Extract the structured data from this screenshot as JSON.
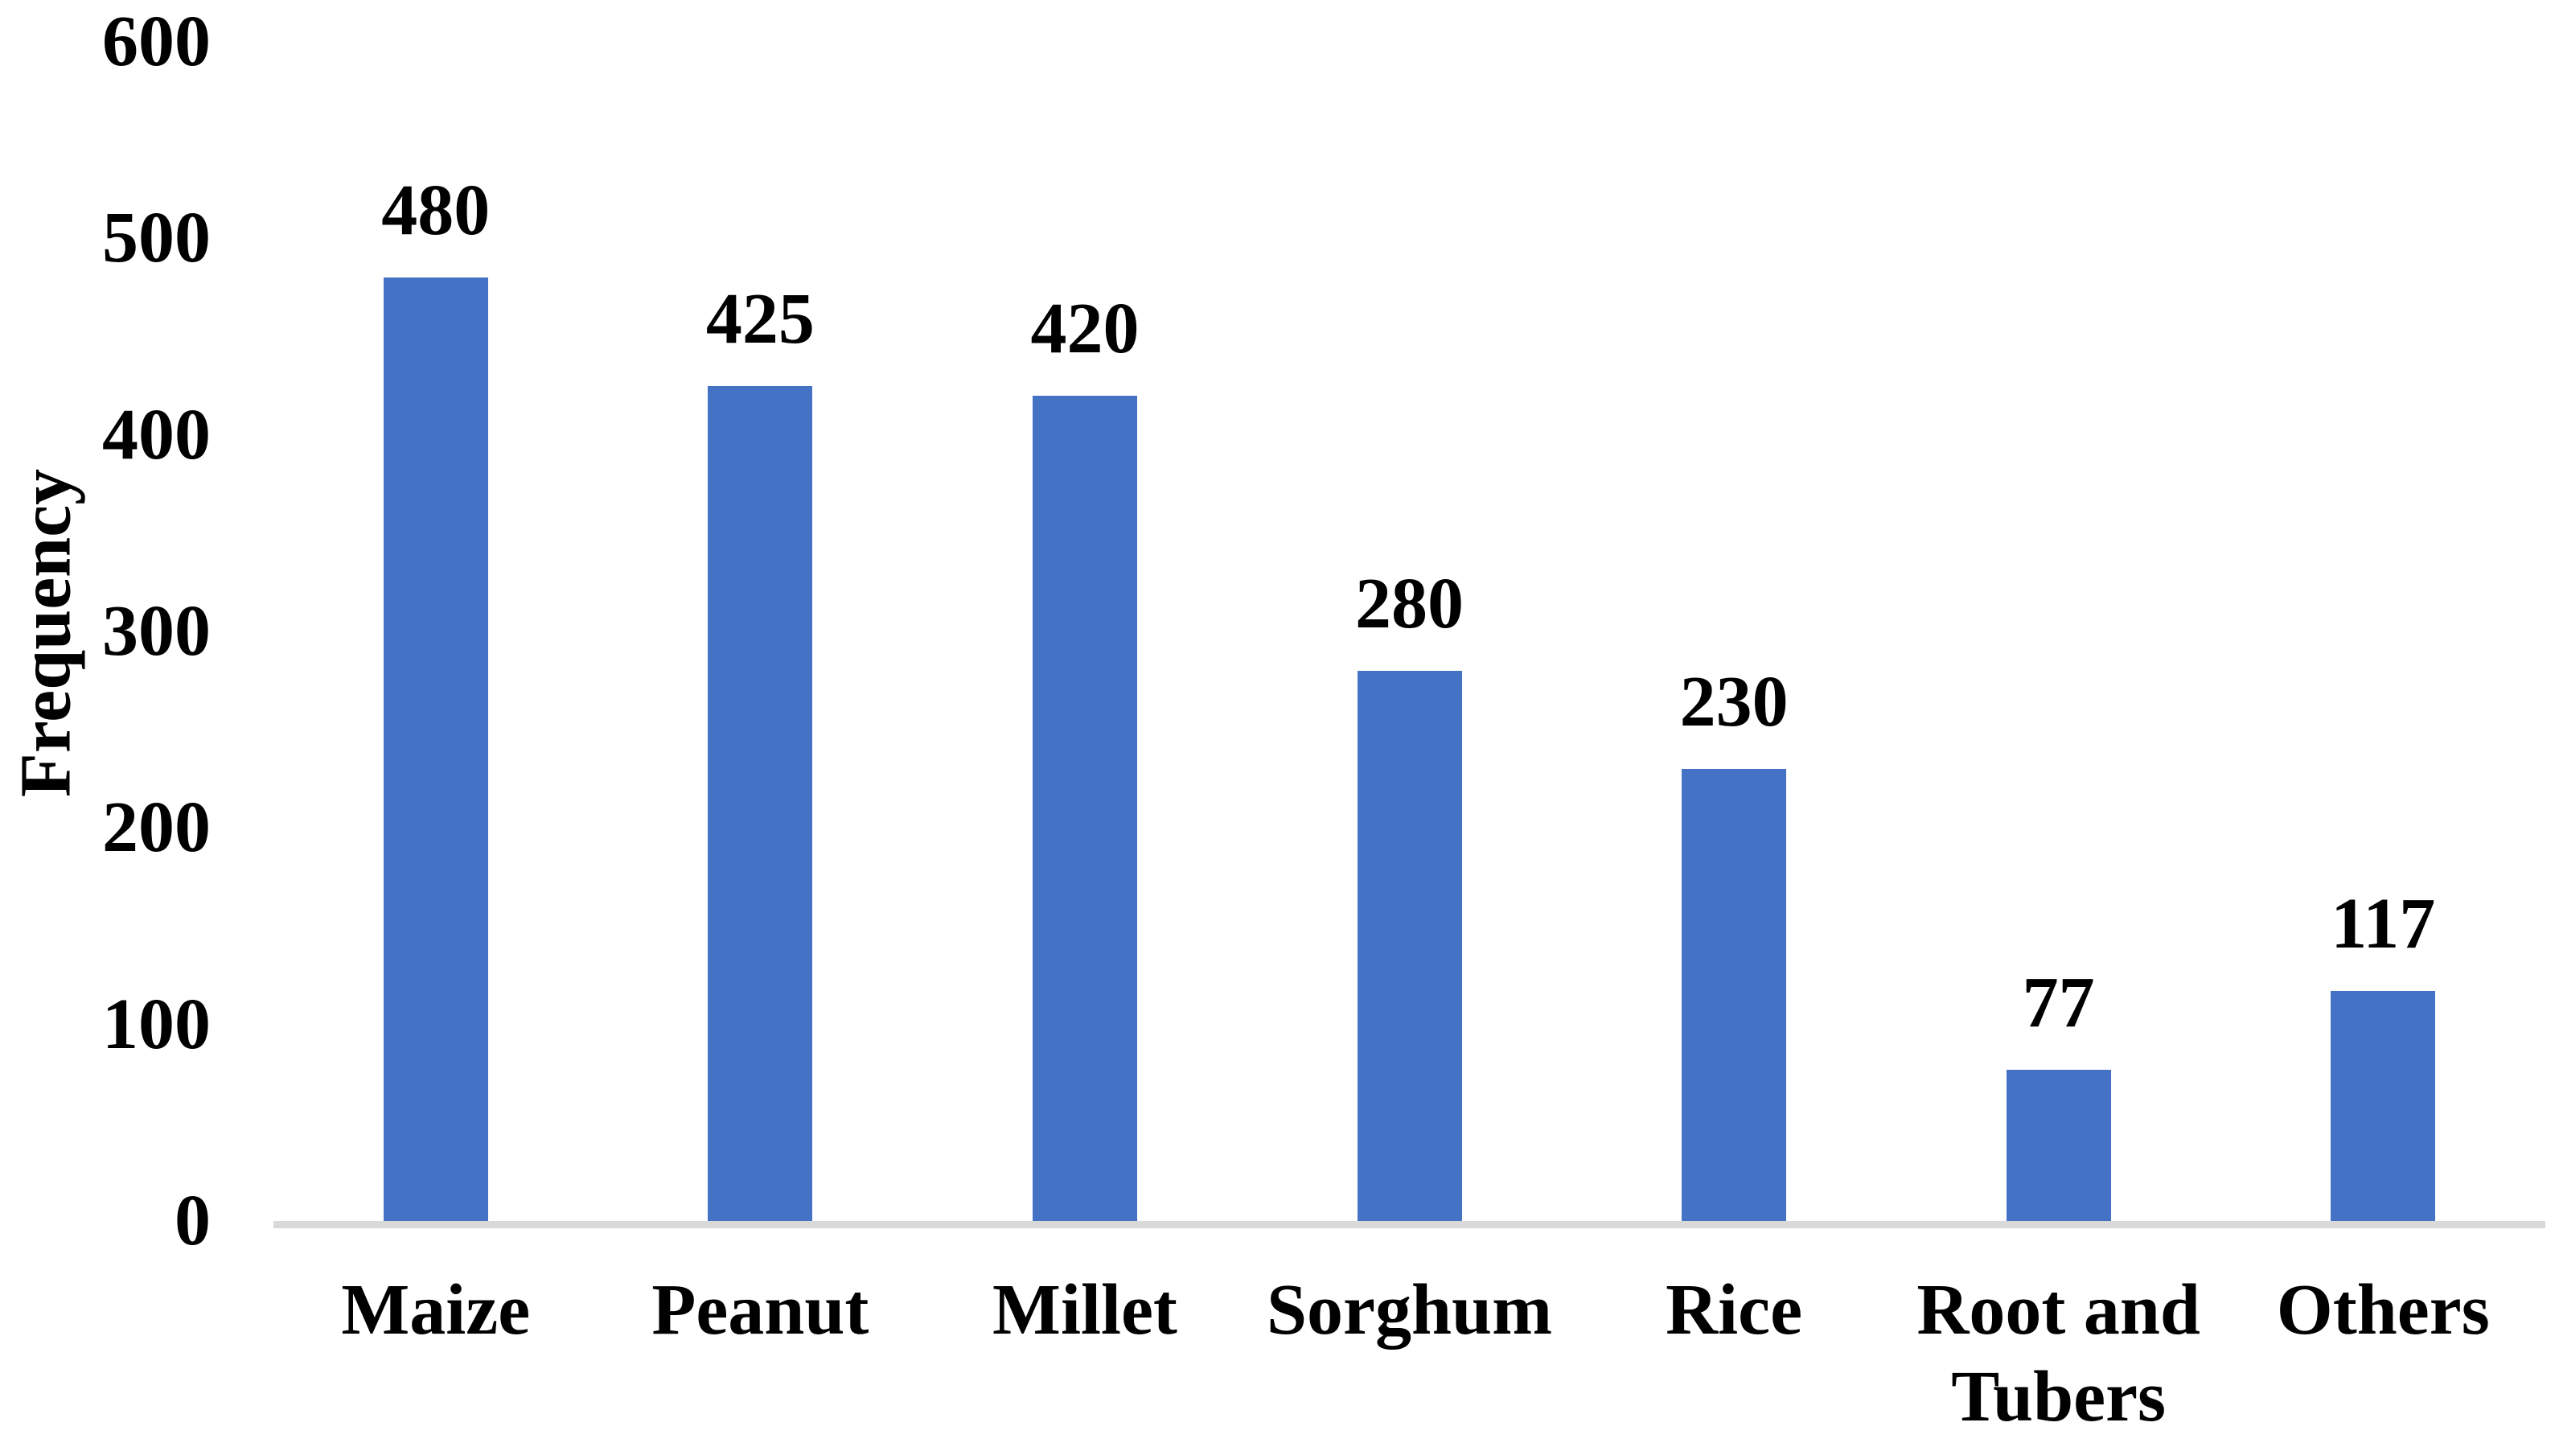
{
  "chart_data": {
    "type": "bar",
    "title": "",
    "xlabel": "",
    "ylabel": "Frequency",
    "categories": [
      "Maize",
      "Peanut",
      "Millet",
      "Sorghum",
      "Rice",
      "Root and Tubers",
      "Others"
    ],
    "values": [
      480,
      425,
      420,
      280,
      230,
      77,
      117
    ],
    "data_labels": [
      "480",
      "425",
      "420",
      "280",
      "230",
      "77",
      "117"
    ],
    "ylim": [
      0,
      600
    ],
    "yticks": [
      0,
      100,
      200,
      300,
      400,
      500,
      600
    ],
    "ytick_labels": [
      "0",
      "100",
      "200",
      "300",
      "400",
      "500",
      "600"
    ],
    "grid": false,
    "legend": false,
    "bar_color": "#4472C4",
    "axis_line_color": "#D9D9D9",
    "text_color": "#000000",
    "background_color": "#FFFFFF"
  }
}
